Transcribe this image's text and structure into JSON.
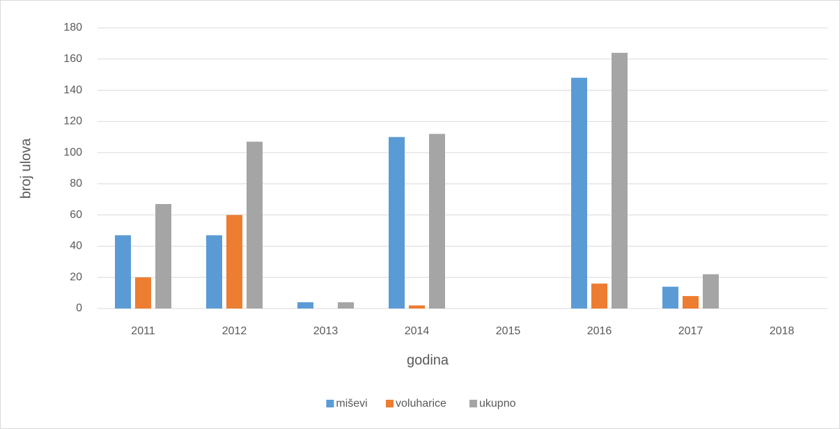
{
  "chart_data": {
    "type": "bar",
    "categories": [
      "2011",
      "2012",
      "2013",
      "2014",
      "2015",
      "2016",
      "2017",
      "2018"
    ],
    "series": [
      {
        "name": "miševi",
        "color": "#5b9bd5",
        "values": [
          47,
          47,
          4,
          110,
          0,
          148,
          14,
          0
        ]
      },
      {
        "name": "voluharice",
        "color": "#ed7d31",
        "values": [
          20,
          60,
          0,
          2,
          0,
          16,
          8,
          0
        ]
      },
      {
        "name": "ukupno",
        "color": "#a5a5a5",
        "values": [
          67,
          107,
          4,
          112,
          0,
          164,
          22,
          0
        ]
      }
    ],
    "x_label": "godina",
    "y_label": "broj ulova",
    "ylim": [
      0,
      180
    ],
    "yticks": [
      0,
      20,
      40,
      60,
      80,
      100,
      120,
      140,
      160,
      180
    ],
    "grid": true,
    "legend": "bottom"
  }
}
